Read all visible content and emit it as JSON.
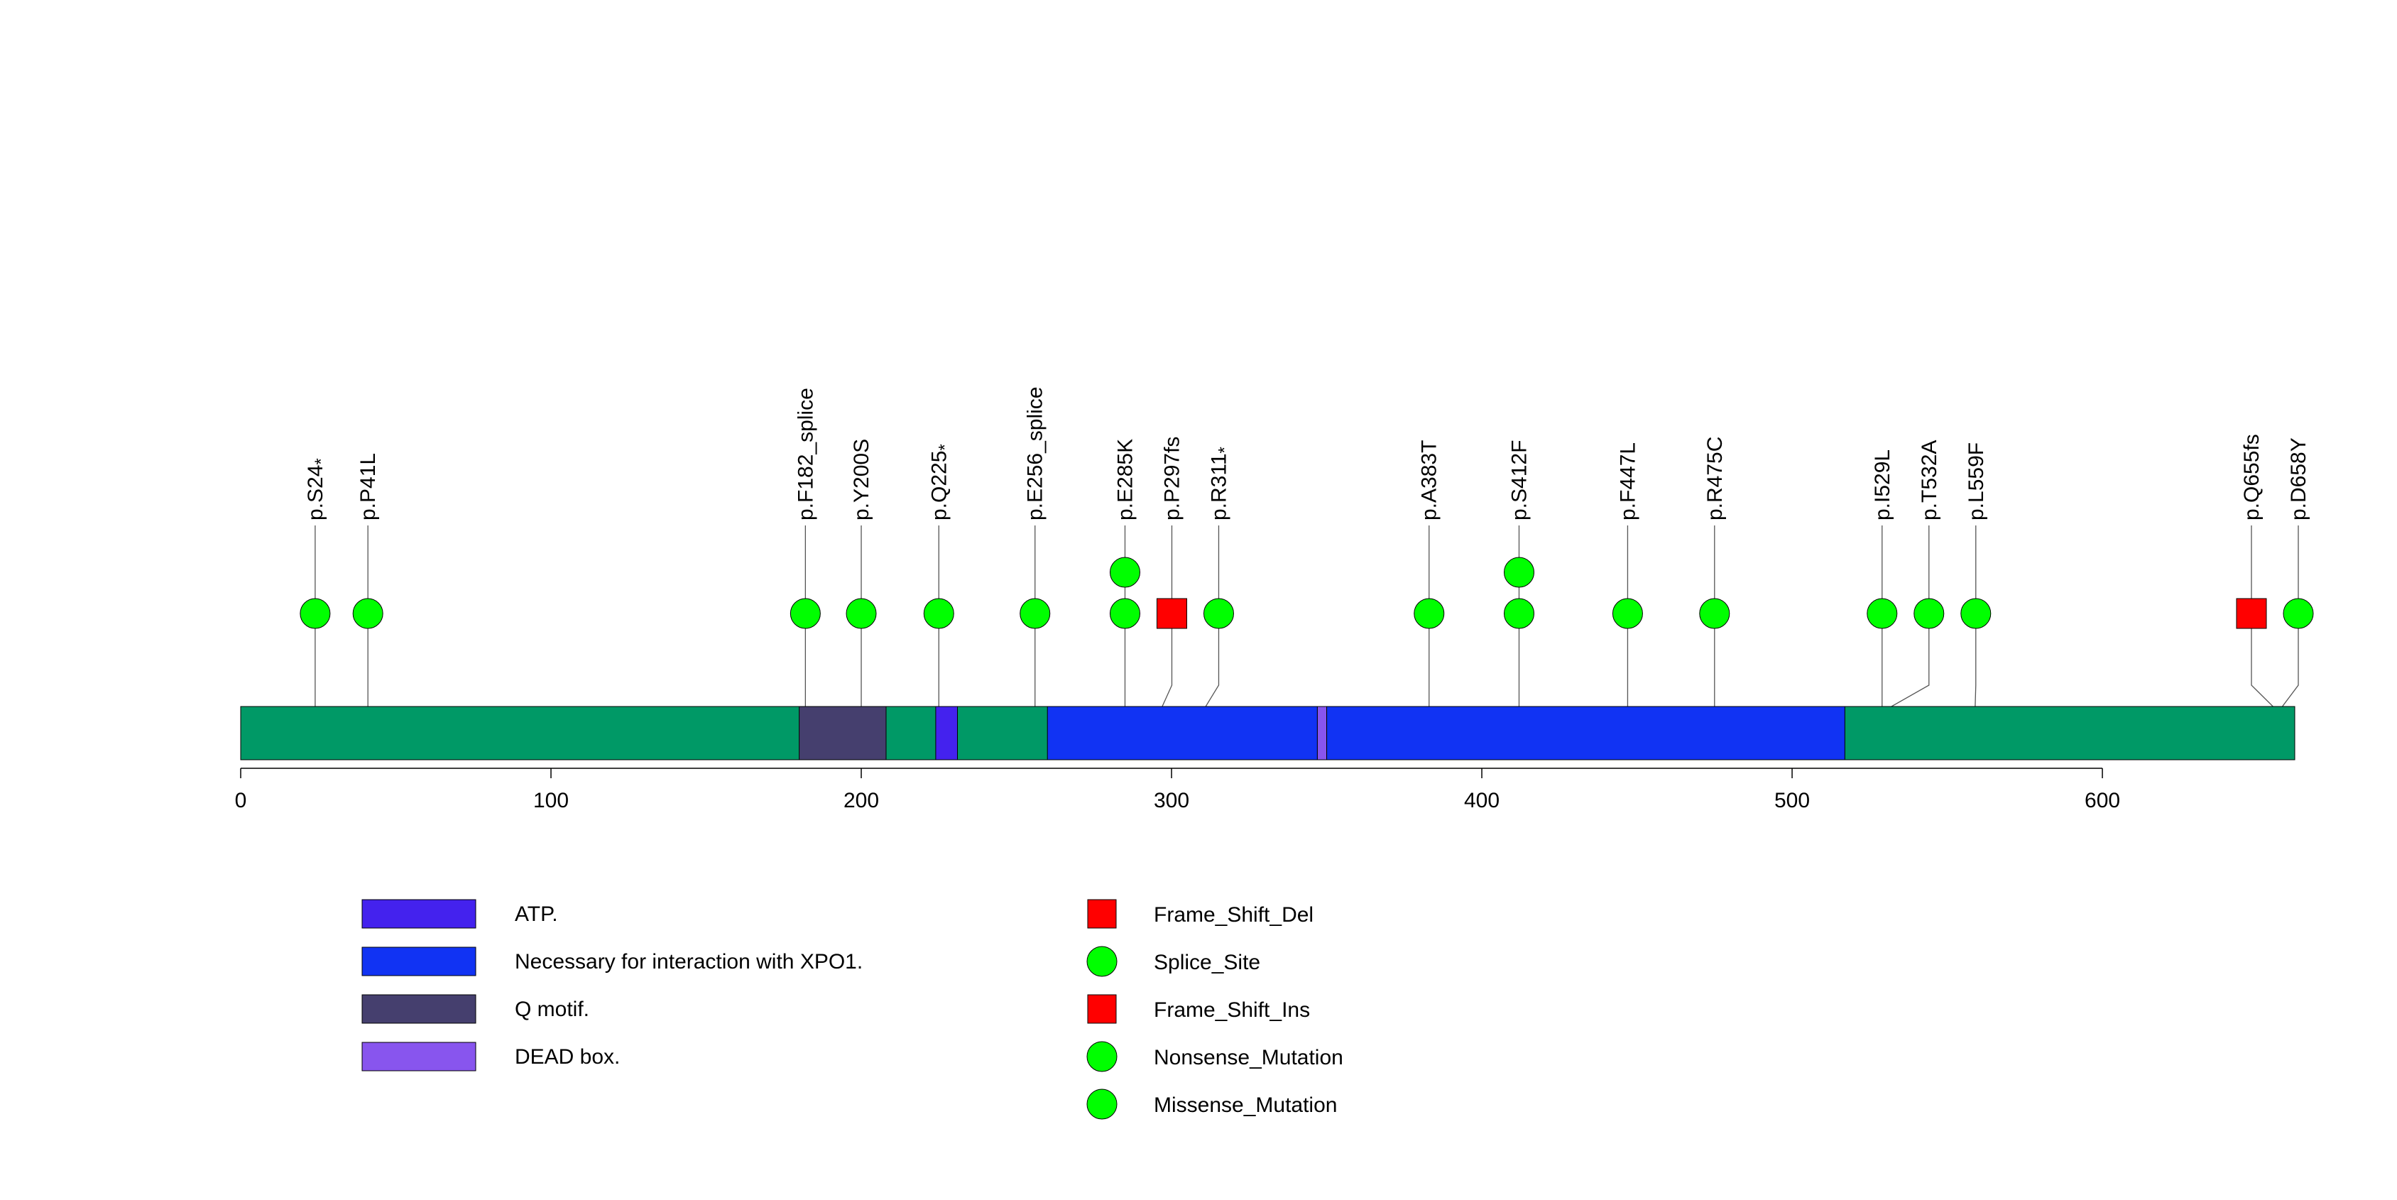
{
  "chart_data": {
    "type": "lollipop",
    "protein_length": 662,
    "xlim": [
      0,
      662
    ],
    "x_ticks": [
      0,
      100,
      200,
      300,
      400,
      500,
      600
    ],
    "backbone_color": "#009966",
    "domains": [
      {
        "name": "Q motif.",
        "start": 180,
        "end": 208,
        "color": "#453F6E"
      },
      {
        "name": "ATP.",
        "start": 224,
        "end": 231,
        "color": "#4422EE"
      },
      {
        "name": "Necessary for interaction with XPO1.",
        "start": 260,
        "end": 347,
        "color": "#1133F3"
      },
      {
        "name": "DEAD box.",
        "start": 347,
        "end": 350,
        "color": "#8855EE"
      },
      {
        "name": "Necessary for interaction with XPO1.",
        "start": 350,
        "end": 517,
        "color": "#1133F3"
      }
    ],
    "mutations": [
      {
        "label": "p.S24*",
        "base": "p.S24",
        "star": true,
        "position": 24,
        "count": 1,
        "shape": "circle",
        "color": "#00FF00"
      },
      {
        "label": "p.P41L",
        "base": "p.P41L",
        "star": false,
        "position": 41,
        "count": 1,
        "shape": "circle",
        "color": "#00FF00"
      },
      {
        "label": "p.F182_splice",
        "base": "p.F182_splice",
        "star": false,
        "position": 182,
        "count": 1,
        "shape": "circle",
        "color": "#00FF00"
      },
      {
        "label": "p.Y200S",
        "base": "p.Y200S",
        "star": false,
        "position": 200,
        "count": 1,
        "shape": "circle",
        "color": "#00FF00"
      },
      {
        "label": "p.Q225*",
        "base": "p.Q225",
        "star": true,
        "position": 225,
        "count": 1,
        "shape": "circle",
        "color": "#00FF00"
      },
      {
        "label": "p.E256_splice",
        "base": "p.E256_splice",
        "star": false,
        "position": 256,
        "count": 1,
        "shape": "circle",
        "color": "#00FF00"
      },
      {
        "label": "p.E285K",
        "base": "p.E285K",
        "star": false,
        "position": 285,
        "count": 2,
        "shape": "circle",
        "color": "#00FF00"
      },
      {
        "label": "p.P297fs",
        "base": "p.P297fs",
        "star": false,
        "position": 297,
        "count": 1,
        "shape": "square",
        "color": "#FF0000"
      },
      {
        "label": "p.R311*",
        "base": "p.R311",
        "star": true,
        "position": 311,
        "count": 1,
        "shape": "circle",
        "color": "#00FF00"
      },
      {
        "label": "p.A383T",
        "base": "p.A383T",
        "star": false,
        "position": 383,
        "count": 1,
        "shape": "circle",
        "color": "#00FF00"
      },
      {
        "label": "p.S412F",
        "base": "p.S412F",
        "star": false,
        "position": 412,
        "count": 2,
        "shape": "circle",
        "color": "#00FF00"
      },
      {
        "label": "p.F447L",
        "base": "p.F447L",
        "star": false,
        "position": 447,
        "count": 1,
        "shape": "circle",
        "color": "#00FF00"
      },
      {
        "label": "p.R475C",
        "base": "p.R475C",
        "star": false,
        "position": 475,
        "count": 1,
        "shape": "circle",
        "color": "#00FF00"
      },
      {
        "label": "p.I529L",
        "base": "p.I529L",
        "star": false,
        "position": 529,
        "count": 1,
        "shape": "circle",
        "color": "#00FF00"
      },
      {
        "label": "p.T532A",
        "base": "p.T532A",
        "star": false,
        "position": 532,
        "count": 1,
        "shape": "circle",
        "color": "#00FF00"
      },
      {
        "label": "p.L559F",
        "base": "p.L559F",
        "star": false,
        "position": 559,
        "count": 1,
        "shape": "circle",
        "color": "#00FF00"
      },
      {
        "label": "p.Q655fs",
        "base": "p.Q655fs",
        "star": false,
        "position": 655,
        "count": 1,
        "shape": "square",
        "color": "#FF0000"
      },
      {
        "label": "p.D658Y",
        "base": "p.D658Y",
        "star": false,
        "position": 658,
        "count": 1,
        "shape": "circle",
        "color": "#00FF00"
      }
    ],
    "domain_legend": [
      {
        "label": "ATP.",
        "color": "#4422EE"
      },
      {
        "label": "Necessary for interaction with XPO1.",
        "color": "#1133F3"
      },
      {
        "label": "Q motif.",
        "color": "#453F6E"
      },
      {
        "label": "DEAD box.",
        "color": "#8855EE"
      }
    ],
    "mutation_legend": [
      {
        "label": "Frame_Shift_Del",
        "shape": "square",
        "color": "#FF0000"
      },
      {
        "label": "Splice_Site",
        "shape": "circle",
        "color": "#00FF00"
      },
      {
        "label": "Frame_Shift_Ins",
        "shape": "square",
        "color": "#FF0000"
      },
      {
        "label": "Nonsense_Mutation",
        "shape": "circle",
        "color": "#00FF00"
      },
      {
        "label": "Missense_Mutation",
        "shape": "circle",
        "color": "#00FF00"
      }
    ]
  }
}
